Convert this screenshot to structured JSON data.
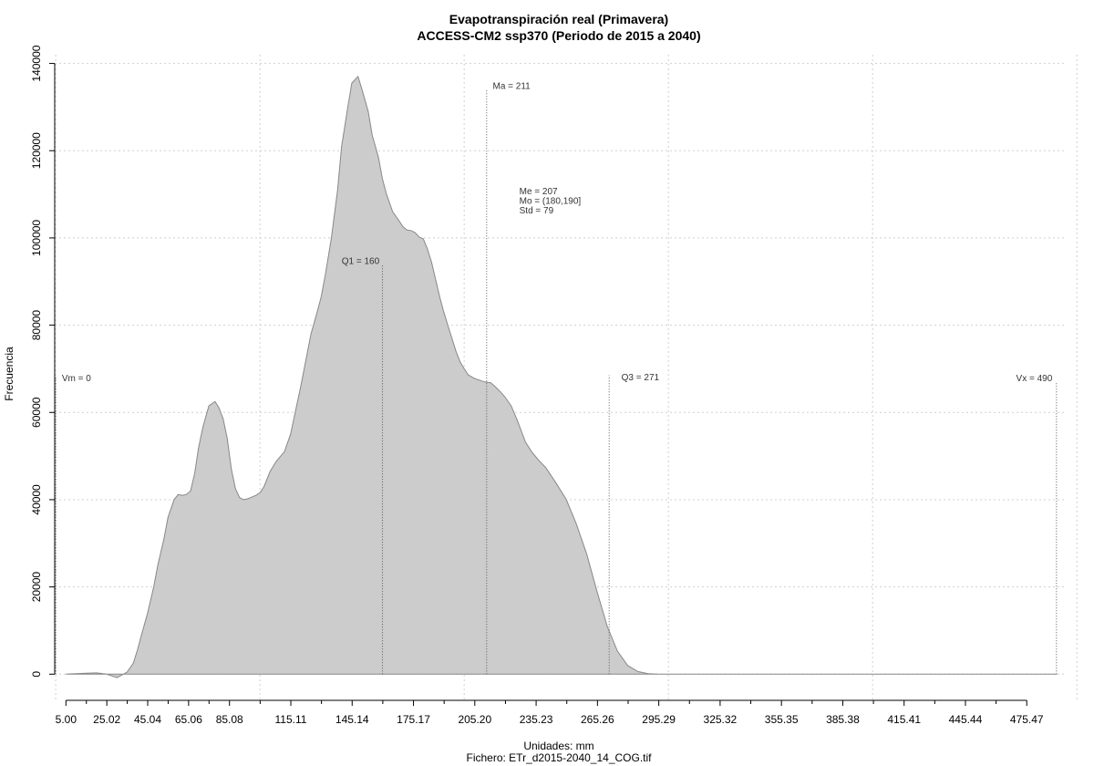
{
  "chart_data": {
    "type": "area",
    "title": "Evapotranspiración real (Primavera)",
    "subtitle": "ACCESS-CM2 ssp370 (Periodo de 2015 a 2040)",
    "xlabel": "Unidades: mm",
    "ylabel": "Frecuencia",
    "footer": "Fichero: ETr_d2015-2040_14_COG.tif",
    "xlim": [
      -0.5,
      495
    ],
    "ylim": [
      -6000,
      142000
    ],
    "grid": true,
    "fill_color": "#cccccc",
    "line_color": "#888888",
    "x_ticks": [
      "5.00",
      "25.02",
      "45.04",
      "65.06",
      "85.08",
      "115.11",
      "145.14",
      "175.17",
      "205.20",
      "235.23",
      "265.26",
      "295.29",
      "325.32",
      "355.35",
      "385.38",
      "415.41",
      "445.44",
      "475.47"
    ],
    "x_tick_values": [
      5.0,
      25.02,
      45.04,
      65.06,
      85.08,
      115.11,
      145.14,
      175.17,
      205.2,
      235.23,
      265.26,
      295.29,
      325.32,
      355.35,
      385.38,
      415.41,
      445.44,
      475.47
    ],
    "y_ticks": [
      "0",
      "20000",
      "40000",
      "60000",
      "80000",
      "100000",
      "120000",
      "140000"
    ],
    "y_tick_values": [
      0,
      20000,
      40000,
      60000,
      80000,
      100000,
      120000,
      140000
    ],
    "x_grid": [
      0,
      100,
      200,
      300,
      400,
      500
    ],
    "density": {
      "x": [
        5,
        15,
        20,
        25,
        30,
        32,
        35,
        38,
        40,
        42,
        45,
        48,
        50,
        53,
        55,
        58,
        60,
        62,
        64,
        66,
        68,
        70,
        72,
        75,
        78,
        80,
        82,
        84,
        86,
        88,
        90,
        92,
        94,
        96,
        98,
        100,
        102,
        105,
        108,
        112,
        115,
        120,
        125,
        128,
        130,
        132,
        135,
        138,
        140,
        143,
        145,
        148,
        150,
        153,
        155,
        158,
        160,
        162,
        165,
        168,
        170,
        172,
        174,
        176,
        178,
        180,
        182,
        184,
        186,
        188,
        190,
        192,
        194,
        196,
        198,
        200,
        202,
        205,
        208,
        210,
        213,
        215,
        218,
        220,
        223,
        226,
        230,
        233,
        236,
        240,
        245,
        250,
        255,
        260,
        265,
        270,
        275,
        280,
        285,
        290,
        295,
        300,
        305,
        310,
        315,
        318,
        320,
        325,
        330,
        335,
        338,
        340,
        345,
        350,
        355,
        360,
        365,
        370,
        375,
        380,
        385,
        390,
        395,
        400,
        405,
        410,
        420,
        440,
        460,
        480,
        490
      ],
      "y": [
        0,
        200,
        300,
        0,
        -800,
        -300,
        500,
        2500,
        5500,
        9000,
        14000,
        20000,
        25000,
        31000,
        36000,
        40000,
        41200,
        41000,
        41200,
        42000,
        46000,
        52000,
        56500,
        61500,
        62500,
        61000,
        58500,
        54000,
        47000,
        42500,
        40500,
        40000,
        40200,
        40600,
        41000,
        41600,
        43000,
        46500,
        48800,
        51000,
        55000,
        66000,
        78000,
        83000,
        86500,
        91500,
        100000,
        111000,
        121000,
        130000,
        135500,
        137000,
        134000,
        129000,
        123500,
        118500,
        113500,
        110000,
        106000,
        104000,
        102600,
        101800,
        101700,
        101200,
        100200,
        99800,
        97500,
        94500,
        90500,
        86500,
        83000,
        80000,
        77000,
        74000,
        71600,
        70000,
        68600,
        67800,
        67300,
        67000,
        66800,
        66000,
        64600,
        63500,
        61500,
        58200,
        53200,
        51000,
        49300,
        47300,
        43800,
        40000,
        34300,
        27500,
        19000,
        11000,
        5300,
        2000,
        600,
        100,
        20,
        0,
        0,
        0,
        0,
        0,
        0,
        0,
        0,
        0,
        0,
        0,
        0,
        0,
        0,
        0,
        0,
        0,
        0,
        0,
        0,
        0,
        0,
        0,
        0,
        0,
        0,
        0,
        0,
        0,
        0
      ]
    },
    "stat_lines": [
      {
        "x": 0,
        "y_top": 68000
      },
      {
        "x": 160,
        "y_top": 94000
      },
      {
        "x": 211,
        "y_top": 134000
      },
      {
        "x": 271,
        "y_top": 68500
      },
      {
        "x": 490,
        "y_top": 67000
      }
    ],
    "annotations": [
      {
        "text": "Vm = 0",
        "x": 3,
        "y": 67200,
        "anchor": "start"
      },
      {
        "text": "Q1 = 160",
        "x": 140,
        "y": 94000,
        "anchor": "start"
      },
      {
        "text": "Ma = 211",
        "x": 214,
        "y": 134200,
        "anchor": "start"
      },
      {
        "text": "Me = 207",
        "x": 227,
        "y": 110000,
        "anchor": "start"
      },
      {
        "text": "Mo = (180,190]",
        "x": 227,
        "y": 107800,
        "anchor": "start"
      },
      {
        "text": "Std = 79",
        "x": 227,
        "y": 105600,
        "anchor": "start"
      },
      {
        "text": "Q3 = 271",
        "x": 277,
        "y": 67400,
        "anchor": "start"
      },
      {
        "text": "Vx = 490",
        "x": 488,
        "y": 67200,
        "anchor": "end"
      }
    ]
  }
}
